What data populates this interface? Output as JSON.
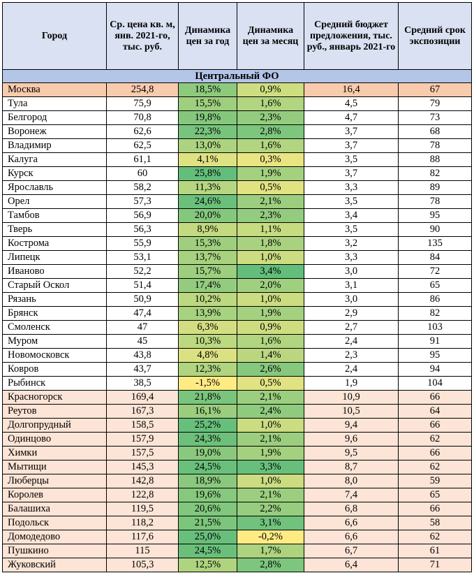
{
  "table": {
    "headers": [
      "Город",
      "Ср. цена кв. м, янв. 2021-го, тыс. руб.",
      "Динамика цен за год",
      "Динамика цен за месяц",
      "Средний бюджет предложения, тыс. руб., январь 2021-го",
      "Средний срок экспозиции"
    ],
    "region_label": "Центральный ФО",
    "colors": {
      "header_bg": "#d9e1f2",
      "region_bg": "#b4c6e7",
      "moscow_bg": "#f8cbad",
      "moscow_region_bg": "#fce4d6",
      "scale_low": "#ffeb84",
      "scale_high": "#63be7b"
    },
    "rows": [
      {
        "city": "Москва",
        "price": "254,8",
        "year": "18,5%",
        "month": "0,9%",
        "budget": "16,4",
        "days": "67",
        "y": 18.5,
        "m": 0.9,
        "style": "moscow"
      },
      {
        "city": "Тула",
        "price": "75,9",
        "year": "15,5%",
        "month": "1,6%",
        "budget": "4,5",
        "days": "79",
        "y": 15.5,
        "m": 1.6,
        "style": ""
      },
      {
        "city": "Белгород",
        "price": "70,8",
        "year": "19,8%",
        "month": "2,3%",
        "budget": "4,7",
        "days": "73",
        "y": 19.8,
        "m": 2.3,
        "style": ""
      },
      {
        "city": "Воронеж",
        "price": "62,6",
        "year": "22,3%",
        "month": "2,8%",
        "budget": "3,7",
        "days": "68",
        "y": 22.3,
        "m": 2.8,
        "style": ""
      },
      {
        "city": "Владимир",
        "price": "62,5",
        "year": "13,0%",
        "month": "1,6%",
        "budget": "3,7",
        "days": "78",
        "y": 13.0,
        "m": 1.6,
        "style": ""
      },
      {
        "city": "Калуга",
        "price": "61,1",
        "year": "4,1%",
        "month": "0,3%",
        "budget": "3,5",
        "days": "88",
        "y": 4.1,
        "m": 0.3,
        "style": ""
      },
      {
        "city": "Курск",
        "price": "60",
        "year": "25,8%",
        "month": "1,9%",
        "budget": "3,7",
        "days": "82",
        "y": 25.8,
        "m": 1.9,
        "style": ""
      },
      {
        "city": "Ярославль",
        "price": "58,2",
        "year": "11,3%",
        "month": "0,5%",
        "budget": "3,3",
        "days": "89",
        "y": 11.3,
        "m": 0.5,
        "style": ""
      },
      {
        "city": "Орел",
        "price": "57,3",
        "year": "24,6%",
        "month": "2,1%",
        "budget": "3,5",
        "days": "78",
        "y": 24.6,
        "m": 2.1,
        "style": ""
      },
      {
        "city": "Тамбов",
        "price": "56,9",
        "year": "20,0%",
        "month": "2,3%",
        "budget": "3,4",
        "days": "95",
        "y": 20.0,
        "m": 2.3,
        "style": ""
      },
      {
        "city": "Тверь",
        "price": "56,3",
        "year": "8,9%",
        "month": "1,1%",
        "budget": "3,5",
        "days": "90",
        "y": 8.9,
        "m": 1.1,
        "style": ""
      },
      {
        "city": "Кострома",
        "price": "55,9",
        "year": "15,3%",
        "month": "1,8%",
        "budget": "3,2",
        "days": "135",
        "y": 15.3,
        "m": 1.8,
        "style": ""
      },
      {
        "city": "Липецк",
        "price": "53,1",
        "year": "13,7%",
        "month": "1,0%",
        "budget": "3,3",
        "days": "84",
        "y": 13.7,
        "m": 1.0,
        "style": ""
      },
      {
        "city": "Иваново",
        "price": "52,2",
        "year": "15,7%",
        "month": "3,4%",
        "budget": "3,0",
        "days": "72",
        "y": 15.7,
        "m": 3.4,
        "style": ""
      },
      {
        "city": "Старый Оскол",
        "price": "51,4",
        "year": "17,4%",
        "month": "2,0%",
        "budget": "3,1",
        "days": "65",
        "y": 17.4,
        "m": 2.0,
        "style": ""
      },
      {
        "city": "Рязань",
        "price": "50,9",
        "year": "10,2%",
        "month": "1,0%",
        "budget": "3,0",
        "days": "86",
        "y": 10.2,
        "m": 1.0,
        "style": ""
      },
      {
        "city": "Брянск",
        "price": "47,4",
        "year": "13,9%",
        "month": "1,9%",
        "budget": "2,9",
        "days": "82",
        "y": 13.9,
        "m": 1.9,
        "style": ""
      },
      {
        "city": "Смоленск",
        "price": "47",
        "year": "6,3%",
        "month": "0,9%",
        "budget": "2,7",
        "days": "103",
        "y": 6.3,
        "m": 0.9,
        "style": ""
      },
      {
        "city": "Муром",
        "price": "45",
        "year": "10,3%",
        "month": "1,6%",
        "budget": "2,4",
        "days": "91",
        "y": 10.3,
        "m": 1.6,
        "style": ""
      },
      {
        "city": "Новомосковск",
        "price": "43,8",
        "year": "4,8%",
        "month": "1,4%",
        "budget": "2,3",
        "days": "95",
        "y": 4.8,
        "m": 1.4,
        "style": ""
      },
      {
        "city": "Ковров",
        "price": "43,7",
        "year": "12,3%",
        "month": "2,6%",
        "budget": "2,4",
        "days": "94",
        "y": 12.3,
        "m": 2.6,
        "style": ""
      },
      {
        "city": "Рыбинск",
        "price": "38,5",
        "year": "-1,5%",
        "month": "0,5%",
        "budget": "1,9",
        "days": "104",
        "y": -1.5,
        "m": 0.5,
        "style": ""
      },
      {
        "city": "Красногорск",
        "price": "169,4",
        "year": "21,8%",
        "month": "2,1%",
        "budget": "10,9",
        "days": "66",
        "y": 21.8,
        "m": 2.1,
        "style": "hl"
      },
      {
        "city": "Реутов",
        "price": "167,3",
        "year": "16,1%",
        "month": "2,4%",
        "budget": "10,5",
        "days": "64",
        "y": 16.1,
        "m": 2.4,
        "style": "hl"
      },
      {
        "city": "Долгопрудный",
        "price": "158,5",
        "year": "25,2%",
        "month": "1,0%",
        "budget": "9,4",
        "days": "66",
        "y": 25.2,
        "m": 1.0,
        "style": "hl"
      },
      {
        "city": "Одинцово",
        "price": "157,9",
        "year": "24,3%",
        "month": "2,1%",
        "budget": "9,6",
        "days": "62",
        "y": 24.3,
        "m": 2.1,
        "style": "hl"
      },
      {
        "city": "Химки",
        "price": "157,5",
        "year": "19,0%",
        "month": "1,9%",
        "budget": "9,5",
        "days": "66",
        "y": 19.0,
        "m": 1.9,
        "style": "hl"
      },
      {
        "city": "Мытищи",
        "price": "145,3",
        "year": "24,5%",
        "month": "3,3%",
        "budget": "8,7",
        "days": "62",
        "y": 24.5,
        "m": 3.3,
        "style": "hl"
      },
      {
        "city": "Люберцы",
        "price": "142,8",
        "year": "18,9%",
        "month": "1,0%",
        "budget": "8,0",
        "days": "59",
        "y": 18.9,
        "m": 1.0,
        "style": "hl"
      },
      {
        "city": "Королев",
        "price": "122,8",
        "year": "19,6%",
        "month": "2,1%",
        "budget": "7,4",
        "days": "65",
        "y": 19.6,
        "m": 2.1,
        "style": "hl"
      },
      {
        "city": "Балашиха",
        "price": "119,5",
        "year": "20,6%",
        "month": "2,2%",
        "budget": "6,8",
        "days": "66",
        "y": 20.6,
        "m": 2.2,
        "style": "hl"
      },
      {
        "city": "Подольск",
        "price": "118,2",
        "year": "21,5%",
        "month": "3,1%",
        "budget": "6,6",
        "days": "58",
        "y": 21.5,
        "m": 3.1,
        "style": "hl"
      },
      {
        "city": "Домодедово",
        "price": "117,6",
        "year": "25,0%",
        "month": "-0,2%",
        "budget": "6,6",
        "days": "62",
        "y": 25.0,
        "m": -0.2,
        "style": "hl"
      },
      {
        "city": "Пушкино",
        "price": "115",
        "year": "24,5%",
        "month": "1,7%",
        "budget": "6,7",
        "days": "61",
        "y": 24.5,
        "m": 1.7,
        "style": "hl"
      },
      {
        "city": "Жуковский",
        "price": "105,3",
        "year": "12,5%",
        "month": "2,8%",
        "budget": "6,4",
        "days": "71",
        "y": 12.5,
        "m": 2.8,
        "style": "hl"
      }
    ]
  }
}
